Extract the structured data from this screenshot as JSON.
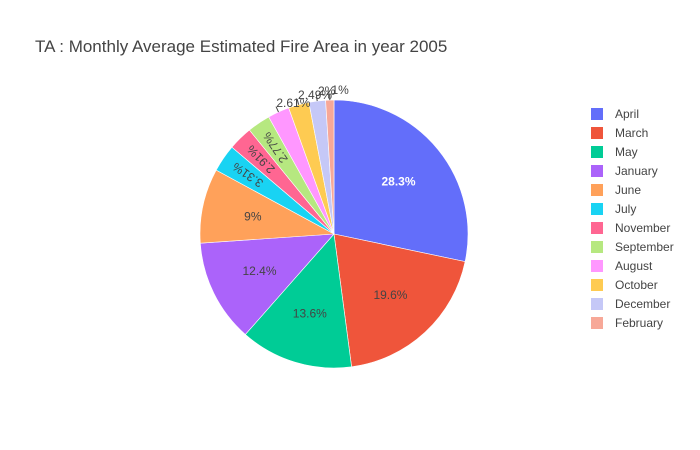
{
  "chart_data": {
    "type": "pie",
    "title": "TA : Monthly Average Estimated Fire Area in year 2005",
    "legend_position": "right",
    "slices": [
      {
        "label": "April",
        "percent": 28.3,
        "text": "28.3%",
        "color": "#636efa"
      },
      {
        "label": "March",
        "percent": 19.6,
        "text": "19.6%",
        "color": "#ef553b"
      },
      {
        "label": "May",
        "percent": 13.6,
        "text": "13.6%",
        "color": "#00cc96"
      },
      {
        "label": "January",
        "percent": 12.4,
        "text": "12.4%",
        "color": "#ab63fa"
      },
      {
        "label": "June",
        "percent": 9,
        "text": "9%",
        "color": "#ffa15a"
      },
      {
        "label": "July",
        "percent": 3.31,
        "text": "3.31%",
        "color": "#19d3f3"
      },
      {
        "label": "November",
        "percent": 2.91,
        "text": "2.91%",
        "color": "#ff6692"
      },
      {
        "label": "September",
        "percent": 2.77,
        "text": "2.77%",
        "color": "#b6e880"
      },
      {
        "label": "August",
        "percent": 2.61,
        "text": "2.61%",
        "color": "#ff97ff"
      },
      {
        "label": "October",
        "percent": 2.49,
        "text": "2.49%",
        "color": "#fecb52"
      },
      {
        "label": "December",
        "percent": 2,
        "text": "2%",
        "color": "#c5c8f7"
      },
      {
        "label": "February",
        "percent": 1,
        "text": "1%",
        "color": "#f7a898"
      }
    ]
  }
}
